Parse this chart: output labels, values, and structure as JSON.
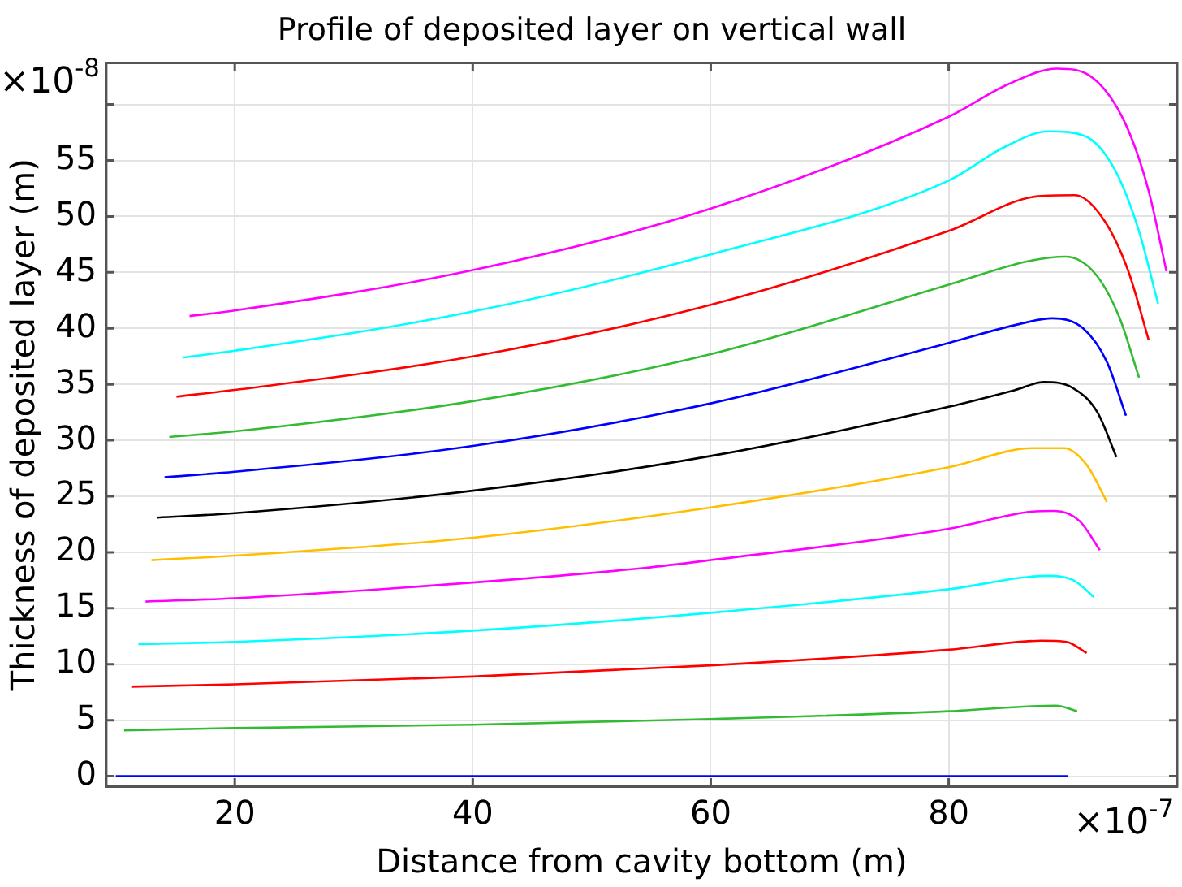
{
  "chart_data": {
    "type": "line",
    "title": "Profile of deposited layer on vertical wall",
    "xlabel": "Distance from cavity bottom (m)",
    "ylabel": "Thickness of deposited layer (m)",
    "annotations": [
      "×10$^{-8}$",
      "×10$^{-7}$"
    ],
    "xlim": [
      9.2,
      99.2
    ],
    "xticks": [
      20,
      40,
      60,
      80
    ],
    "ylim": [
      -0.9,
      63.7
    ],
    "yticks": [
      0,
      5,
      10,
      15,
      20,
      25,
      30,
      35,
      40,
      45,
      50,
      55,
      {
        "value": 60,
        "label": null
      }
    ],
    "grid": true,
    "legend": false,
    "marker": "none",
    "line_style": "solid",
    "series": [
      {
        "color": "#0000ff",
        "x": [
          10,
          20,
          40,
          60,
          80,
          90
        ],
        "values": [
          0,
          0,
          0,
          0,
          0,
          0
        ]
      },
      {
        "color": "#33bb33",
        "x": [
          10.7,
          20,
          40,
          60,
          80,
          89,
          90.8
        ],
        "values": [
          4.1,
          4.3,
          4.6,
          5.1,
          5.8,
          6.3,
          5.8
        ]
      },
      {
        "color": "#ff0000",
        "x": [
          11.3,
          20,
          40,
          60,
          80,
          87.8,
          89.9,
          91.6
        ],
        "values": [
          8,
          8.2,
          8.9,
          9.9,
          11.3,
          12.1,
          12,
          11
        ]
      },
      {
        "color": "#00ffff",
        "x": [
          11.9,
          20,
          40,
          60,
          80,
          88.4,
          90.5,
          92.2
        ],
        "values": [
          11.8,
          12,
          13,
          14.6,
          16.7,
          17.9,
          17.5,
          16
        ]
      },
      {
        "color": "#ff00ff",
        "x": [
          12.5,
          20,
          40,
          54.4,
          60,
          80,
          86.7,
          88.9,
          91,
          92.7
        ],
        "values": [
          15.6,
          15.9,
          17.3,
          18.6,
          19.3,
          22.1,
          23.6,
          23.7,
          22.8,
          20.2
        ]
      },
      {
        "color": "#ffbf00",
        "x": [
          13,
          20,
          40,
          60,
          80,
          87.1,
          89.7,
          91.6,
          93.3
        ],
        "values": [
          19.3,
          19.7,
          21.3,
          24,
          27.6,
          29.3,
          29.3,
          27.8,
          24.5
        ]
      },
      {
        "color": "#000000",
        "x": [
          13.5,
          20,
          40,
          60,
          80,
          85.6,
          88,
          90.4,
          92.5,
          94.1
        ],
        "values": [
          23.1,
          23.5,
          25.5,
          28.6,
          33,
          34.5,
          35.2,
          34.7,
          32.5,
          28.5
        ]
      },
      {
        "color": "#0000ff",
        "x": [
          14.1,
          20,
          40,
          60,
          80,
          85.6,
          88.7,
          91.3,
          93.3,
          94.9
        ],
        "values": [
          26.7,
          27.2,
          29.5,
          33.3,
          38.7,
          40.3,
          40.9,
          40,
          37,
          32.2
        ]
      },
      {
        "color": "#33bb33",
        "x": [
          14.5,
          20,
          40,
          60,
          80,
          86.7,
          89.8,
          92.3,
          94.3,
          96
        ],
        "values": [
          30.3,
          30.8,
          33.5,
          37.7,
          43.9,
          46,
          46.4,
          44.9,
          41.1,
          35.6
        ]
      },
      {
        "color": "#ff0000",
        "x": [
          15.1,
          20,
          40,
          60,
          80,
          87.5,
          90.6,
          93.1,
          95.1,
          96.8
        ],
        "values": [
          33.9,
          34.5,
          37.5,
          42.1,
          48.7,
          51.8,
          51.9,
          49.6,
          45.1,
          39
        ]
      },
      {
        "color": "#00ffff",
        "x": [
          15.6,
          20,
          40,
          60,
          80,
          84.7,
          88.4,
          91.4,
          93.9,
          95.9,
          97.6
        ],
        "values": [
          37.4,
          38,
          41.5,
          46.6,
          53.2,
          56.2,
          57.6,
          57.2,
          54.3,
          49,
          42.2
        ]
      },
      {
        "color": "#ff00ff",
        "x": [
          16.2,
          20,
          40,
          60,
          80,
          85,
          89.1,
          92.2,
          94.8,
          96.8,
          98.3
        ],
        "values": [
          41.1,
          41.6,
          45.2,
          50.7,
          58.9,
          61.8,
          63.2,
          62.3,
          58.4,
          52.3,
          45.1
        ]
      }
    ]
  }
}
